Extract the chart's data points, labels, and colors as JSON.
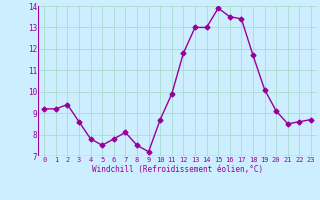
{
  "x": [
    0,
    1,
    2,
    3,
    4,
    5,
    6,
    7,
    8,
    9,
    10,
    11,
    12,
    13,
    14,
    15,
    16,
    17,
    18,
    19,
    20,
    21,
    22,
    23
  ],
  "y": [
    9.2,
    9.2,
    9.4,
    8.6,
    7.8,
    7.5,
    7.8,
    8.1,
    7.5,
    7.2,
    8.7,
    9.9,
    11.8,
    13.0,
    13.0,
    13.9,
    13.5,
    13.4,
    11.7,
    10.1,
    9.1,
    8.5,
    8.6,
    8.7
  ],
  "line_color": "#990099",
  "marker": "D",
  "marker_size": 2.5,
  "bg_color": "#cceeff",
  "grid_color": "#aaddcc",
  "xlabel": "Windchill (Refroidissement éolien,°C)",
  "xlabel_color": "#990099",
  "tick_color": "#990099",
  "label_color": "#990099",
  "ylim": [
    7,
    14
  ],
  "xlim": [
    -0.5,
    23.5
  ],
  "yticks": [
    7,
    8,
    9,
    10,
    11,
    12,
    13,
    14
  ],
  "xticks": [
    0,
    1,
    2,
    3,
    4,
    5,
    6,
    7,
    8,
    9,
    10,
    11,
    12,
    13,
    14,
    15,
    16,
    17,
    18,
    19,
    20,
    21,
    22,
    23
  ]
}
